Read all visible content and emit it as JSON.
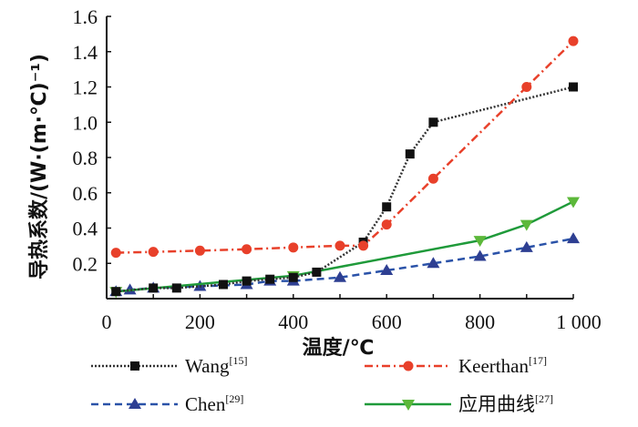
{
  "chart_data": {
    "type": "line",
    "title": "",
    "xlabel": "温度/℃",
    "ylabel": "导热系数/(W·(m·℃)⁻¹)",
    "xlim": [
      0,
      1000
    ],
    "ylim": [
      0,
      1.6
    ],
    "xticks": [
      0,
      200,
      400,
      600,
      800,
      1000
    ],
    "xtick_labels": [
      "0",
      "200",
      "400",
      "600",
      "800",
      "1 000"
    ],
    "yticks": [
      0.2,
      0.4,
      0.6,
      0.8,
      1.0,
      1.2,
      1.4,
      1.6
    ],
    "ytick_labels": [
      "0.2",
      "0.4",
      "0.6",
      "0.8",
      "1.0",
      "1.2",
      "1.4",
      "1.6"
    ],
    "grid": false,
    "legend_position": "bottom",
    "series": [
      {
        "name": "Wang",
        "ref": "[15]",
        "color": "#333333",
        "dash": "dotted",
        "marker": "square",
        "marker_color": "#111111",
        "x": [
          20,
          100,
          150,
          250,
          300,
          350,
          400,
          450,
          550,
          600,
          650,
          700,
          1000
        ],
        "y": [
          0.04,
          0.06,
          0.06,
          0.08,
          0.1,
          0.11,
          0.12,
          0.15,
          0.32,
          0.52,
          0.82,
          1.0,
          1.2
        ]
      },
      {
        "name": "Keerthan",
        "ref": "[17]",
        "color": "#e8402a",
        "dash": "dashdot",
        "marker": "circle",
        "marker_color": "#e8402a",
        "x": [
          20,
          100,
          200,
          300,
          400,
          500,
          550,
          600,
          700,
          900,
          1000
        ],
        "y": [
          0.26,
          0.265,
          0.272,
          0.28,
          0.29,
          0.3,
          0.3,
          0.42,
          0.68,
          1.2,
          1.46
        ]
      },
      {
        "name": "Chen",
        "ref": "[29]",
        "color": "#2a52a8",
        "dash": "dashed",
        "marker": "triangle-up",
        "marker_color": "#2e3f92",
        "x": [
          20,
          50,
          100,
          200,
          300,
          350,
          400,
          500,
          600,
          700,
          800,
          900,
          1000
        ],
        "y": [
          0.04,
          0.05,
          0.06,
          0.07,
          0.08,
          0.1,
          0.1,
          0.12,
          0.16,
          0.2,
          0.24,
          0.29,
          0.34
        ]
      },
      {
        "name": "应用曲线",
        "ref": "[27]",
        "color": "#1f9a3a",
        "dash": "solid",
        "marker": "triangle-down",
        "marker_color": "#5cb83a",
        "x": [
          20,
          400,
          800,
          900,
          1000
        ],
        "y": [
          0.04,
          0.13,
          0.33,
          0.42,
          0.55
        ]
      }
    ]
  }
}
